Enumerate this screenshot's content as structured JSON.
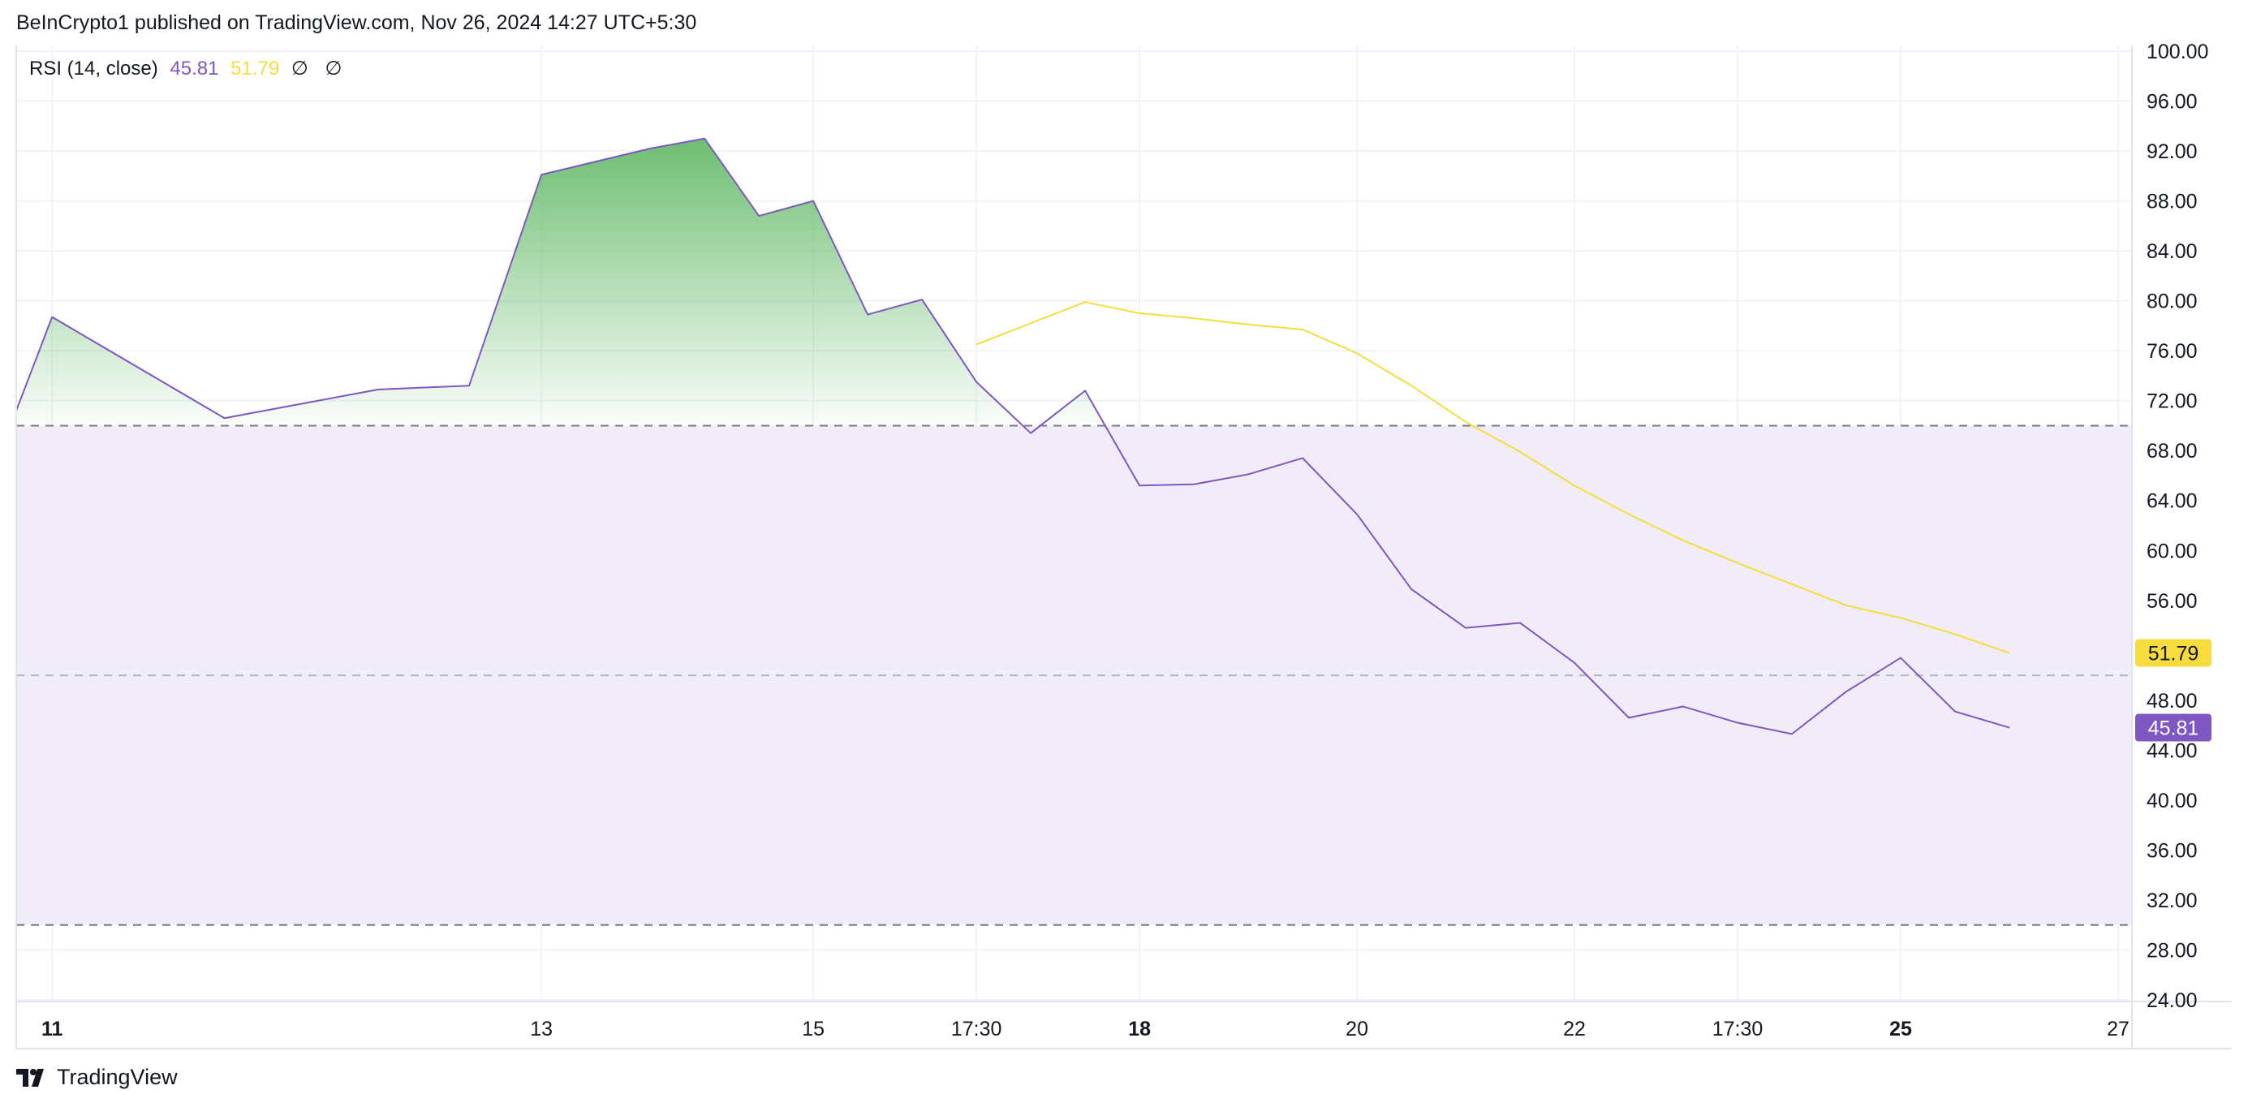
{
  "header": {
    "publisher_line": "BeInCrypto1 published on TradingView.com, Nov 26, 2024 14:27 UTC+5:30"
  },
  "legend": {
    "indicator": "RSI (14, close)",
    "rsi_value": "45.81",
    "ma_value": "51.79",
    "null_symbol_1": "∅",
    "null_symbol_2": "∅"
  },
  "footer": {
    "brand": "TradingView",
    "logo_icon": "tradingview-logo-icon"
  },
  "colors": {
    "rsi_line": "#7e57c2",
    "ma_line": "#f7dc3d",
    "band_fill": "#f0ecf8",
    "overbought_fill": "#66bb6a",
    "grid": "#f0f3fa",
    "band_lines": "#787b86"
  },
  "chart_data": {
    "type": "line",
    "title": "",
    "xlabel": "",
    "ylabel": "",
    "ylim": [
      24,
      100
    ],
    "y_ticks": [
      "100.00",
      "96.00",
      "92.00",
      "88.00",
      "84.00",
      "80.00",
      "76.00",
      "72.00",
      "68.00",
      "64.00",
      "60.00",
      "56.00",
      "52.00",
      "48.00",
      "44.00",
      "40.00",
      "36.00",
      "32.00",
      "28.00",
      "24.00"
    ],
    "x_ticks": [
      {
        "label": "11",
        "bold": true,
        "x": 0.33
      },
      {
        "label": "13",
        "bold": false,
        "x": 9.33
      },
      {
        "label": "15",
        "bold": false,
        "x": 14.33
      },
      {
        "label": "17:30",
        "bold": false,
        "x": 17.33
      },
      {
        "label": "18",
        "bold": true,
        "x": 20.33
      },
      {
        "label": "20",
        "bold": false,
        "x": 24.33
      },
      {
        "label": "22",
        "bold": false,
        "x": 28.33
      },
      {
        "label": "17:30",
        "bold": false,
        "x": 31.33
      },
      {
        "label": "25",
        "bold": true,
        "x": 34.33
      },
      {
        "label": "27",
        "bold": false,
        "x": 38.33
      }
    ],
    "xlim": [
      -0.33,
      38.33
    ],
    "bands": {
      "upper": 70,
      "middle": 50,
      "lower": 30
    },
    "grid": true,
    "series": [
      {
        "name": "RSI",
        "x": [
          -0.33,
          0.33,
          3.5,
          6.33,
          8.0,
          9.33,
          11.33,
          12.33,
          13.33,
          14.33,
          15.33,
          16.33,
          17.33,
          18.33,
          19.33,
          20.33,
          21.33,
          22.33,
          23.33,
          24.33,
          25.33,
          26.33,
          27.33,
          28.33,
          29.33,
          30.33,
          31.33,
          32.33,
          33.33,
          34.33,
          35.33,
          36.33
        ],
        "values": [
          71.2,
          78.7,
          70.6,
          72.9,
          73.2,
          90.1,
          92.2,
          93.0,
          86.8,
          88.0,
          78.9,
          80.1,
          73.5,
          69.4,
          72.8,
          65.2,
          65.3,
          66.1,
          67.4,
          62.9,
          56.9,
          53.8,
          54.2,
          51.0,
          46.6,
          47.5,
          46.2,
          45.3,
          48.7,
          51.4,
          47.1,
          45.81
        ]
      },
      {
        "name": "RSI-based MA",
        "x": [
          17.33,
          19.33,
          20.33,
          21.33,
          22.33,
          23.33,
          24.33,
          25.33,
          26.33,
          27.33,
          28.33,
          29.33,
          30.33,
          31.33,
          32.33,
          33.33,
          34.33,
          35.33,
          36.33
        ],
        "values": [
          76.5,
          79.9,
          79.0,
          78.6,
          78.1,
          77.7,
          75.8,
          73.2,
          70.3,
          67.9,
          65.2,
          62.9,
          60.8,
          59.0,
          57.3,
          55.6,
          54.6,
          53.3,
          51.79
        ]
      }
    ],
    "last_value_labels": [
      {
        "series": "RSI-based MA",
        "value": "51.79"
      },
      {
        "series": "RSI",
        "value": "45.81"
      }
    ]
  }
}
